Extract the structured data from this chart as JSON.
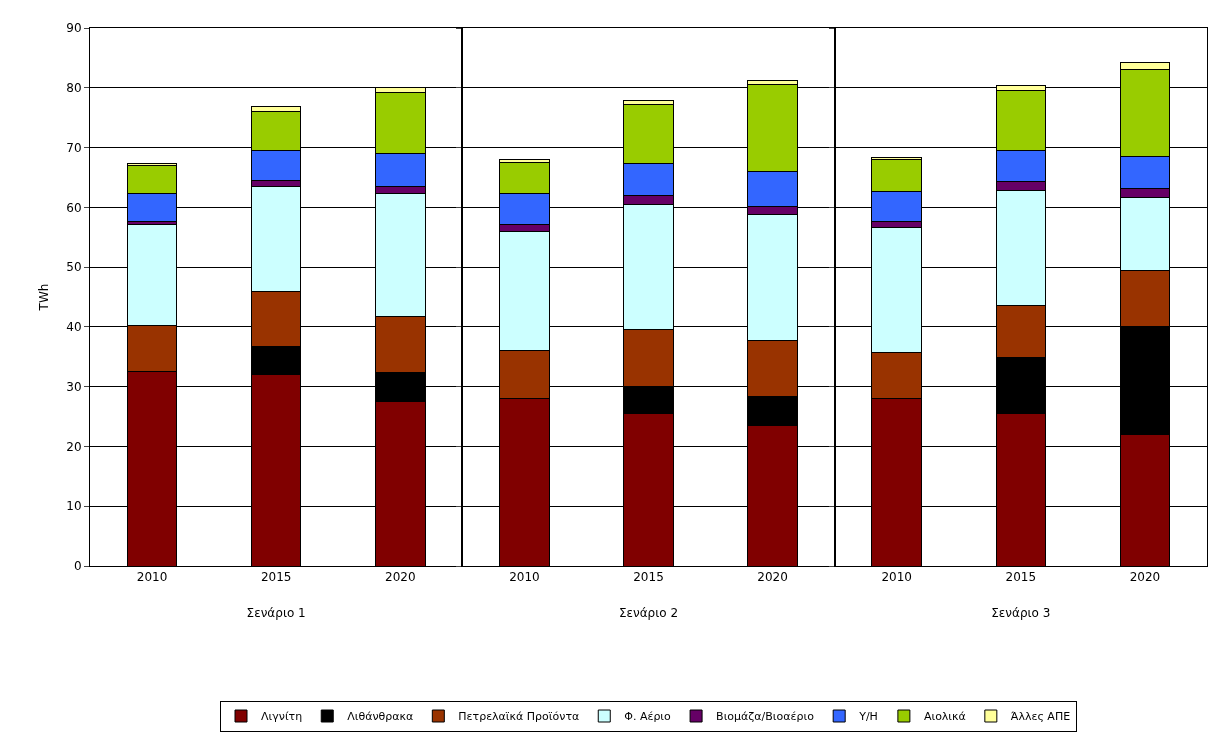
{
  "chart_data": [
    {
      "type": "bar",
      "stacked": true,
      "ylabel": "TWh",
      "xlabel": "Σενάριο 1",
      "categories": [
        "2010",
        "2015",
        "2020"
      ],
      "ylim": [
        0,
        90
      ],
      "yticks": [
        0,
        10,
        20,
        30,
        40,
        50,
        60,
        70,
        80,
        90
      ],
      "grid": "y",
      "legend": "bottom",
      "series": [
        {
          "name": "Λιγνίτη",
          "color": "#800000",
          "values": [
            32.5,
            32,
            27.5
          ]
        },
        {
          "name": "Λιθάνθρακα",
          "color": "#000000",
          "values": [
            0,
            4.8,
            4.8
          ]
        },
        {
          "name": "Πετρελαϊκά Προϊόντα",
          "color": "#993300",
          "values": [
            7.8,
            9.2,
            9.5
          ]
        },
        {
          "name": "Φ. Αέριο",
          "color": "#ccffff",
          "values": [
            16.8,
            17.5,
            20.5
          ]
        },
        {
          "name": "Βιομάζα/Βιοαέριο",
          "color": "#660066",
          "values": [
            0.5,
            1.0,
            1.2
          ]
        },
        {
          "name": "Υ/Η",
          "color": "#3366ff",
          "values": [
            4.7,
            5.0,
            5.5
          ]
        },
        {
          "name": "Αιολικά",
          "color": "#99cc00",
          "values": [
            4.7,
            6.5,
            10.2
          ]
        },
        {
          "name": "Άλλες ΑΠΕ",
          "color": "#ffff99",
          "values": [
            0.3,
            0.8,
            0.8
          ]
        }
      ]
    },
    {
      "type": "bar",
      "stacked": true,
      "xlabel": "Σενάριο 2",
      "categories": [
        "2010",
        "2015",
        "2020"
      ],
      "ylim": [
        0,
        90
      ],
      "yticks": [
        0,
        10,
        20,
        30,
        40,
        50,
        60,
        70,
        80,
        90
      ],
      "grid": "y",
      "tick_labels": "x",
      "series": [
        {
          "color": "#800000",
          "values": [
            28,
            25.5,
            23.5
          ]
        },
        {
          "color": "#000000",
          "values": [
            0,
            4.5,
            4.8
          ]
        },
        {
          "color": "#993300",
          "values": [
            8,
            9.5,
            9.5
          ]
        },
        {
          "color": "#ccffff",
          "values": [
            20,
            21,
            21
          ]
        },
        {
          "color": "#660066",
          "values": [
            1.2,
            1.5,
            1.4
          ]
        },
        {
          "color": "#3366ff",
          "values": [
            5.1,
            5.3,
            5.8
          ]
        },
        {
          "color": "#99cc00",
          "values": [
            5.2,
            9.9,
            14.5
          ]
        },
        {
          "color": "#ffff99",
          "values": [
            0.5,
            0.6,
            0.8
          ]
        }
      ]
    },
    {
      "type": "bar",
      "stacked": true,
      "xlabel": "Σενάριο 3",
      "categories": [
        "2010",
        "2015",
        "2020"
      ],
      "ylim": [
        0,
        90
      ],
      "yticks": [
        0,
        10,
        20,
        30,
        40,
        50,
        60,
        70,
        80,
        90
      ],
      "grid": "y",
      "tick_labels": "x",
      "series": [
        {
          "color": "#800000",
          "values": [
            28,
            25.5,
            22
          ]
        },
        {
          "color": "#000000",
          "values": [
            0,
            9.3,
            18
          ]
        },
        {
          "color": "#993300",
          "values": [
            7.8,
            8.7,
            9.5
          ]
        },
        {
          "color": "#ccffff",
          "values": [
            20.9,
            19.3,
            12.2
          ]
        },
        {
          "color": "#660066",
          "values": [
            0.9,
            1.5,
            1.5
          ]
        },
        {
          "color": "#3366ff",
          "values": [
            5.1,
            5.2,
            5.3
          ]
        },
        {
          "color": "#99cc00",
          "values": [
            5.3,
            10,
            14.5
          ]
        },
        {
          "color": "#ffff99",
          "values": [
            0.3,
            0.8,
            1.2
          ]
        }
      ]
    }
  ]
}
